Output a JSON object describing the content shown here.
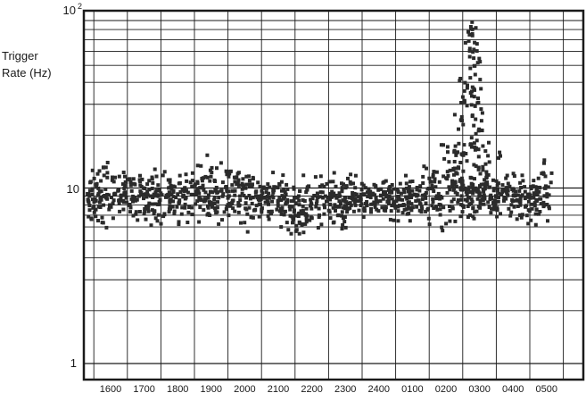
{
  "chart_data": {
    "type": "scatter",
    "ylabel_line1": "Trigger",
    "ylabel_line2": "Rate (Hz)",
    "xlabel": "",
    "yscale": "log",
    "ylim": [
      1,
      100
    ],
    "ytick_labels": [
      "1",
      "10",
      "10"
    ],
    "ytick_exponent": "2",
    "xtick_labels": [
      "1600",
      "1700",
      "1800",
      "1900",
      "2000",
      "2100",
      "2200",
      "2300",
      "2400",
      "0100",
      "0200",
      "0300",
      "0400",
      "0500"
    ],
    "grid": true,
    "marker_color": "#2b2b2b",
    "series": [
      {
        "segments": [
          {
            "start": 0.0,
            "end": 1.0,
            "level": 9.4,
            "spread": 0.07
          },
          {
            "start": 1.0,
            "end": 2.0,
            "level": 9.2,
            "spread": 0.07
          },
          {
            "start": 2.0,
            "end": 3.0,
            "level": 9.4,
            "spread": 0.07
          },
          {
            "start": 3.0,
            "end": 4.0,
            "level": 9.5,
            "spread": 0.08
          },
          {
            "start": 4.0,
            "end": 5.0,
            "level": 9.4,
            "spread": 0.08
          },
          {
            "start": 5.0,
            "end": 6.0,
            "level": 8.9,
            "spread": 0.07
          },
          {
            "start": 6.0,
            "end": 6.8,
            "level": 7.5,
            "spread": 0.07
          },
          {
            "start": 6.8,
            "end": 8.0,
            "level": 8.6,
            "spread": 0.07
          },
          {
            "start": 8.0,
            "end": 10.0,
            "level": 9.0,
            "spread": 0.05
          },
          {
            "start": 10.0,
            "end": 10.6,
            "level": 9.4,
            "spread": 0.07
          },
          {
            "start": 10.6,
            "end": 11.1,
            "level": 11.0,
            "spread": 0.14
          },
          {
            "start": 11.1,
            "end": 12.0,
            "level": 9.5,
            "spread": 0.07
          },
          {
            "start": 12.0,
            "end": 13.3,
            "level": 9.0,
            "spread": 0.06
          },
          {
            "start": 13.3,
            "end": 13.9,
            "level": 9.3,
            "spread": 0.07
          }
        ],
        "peak": {
          "center": 11.05,
          "max": 100
        }
      }
    ]
  }
}
